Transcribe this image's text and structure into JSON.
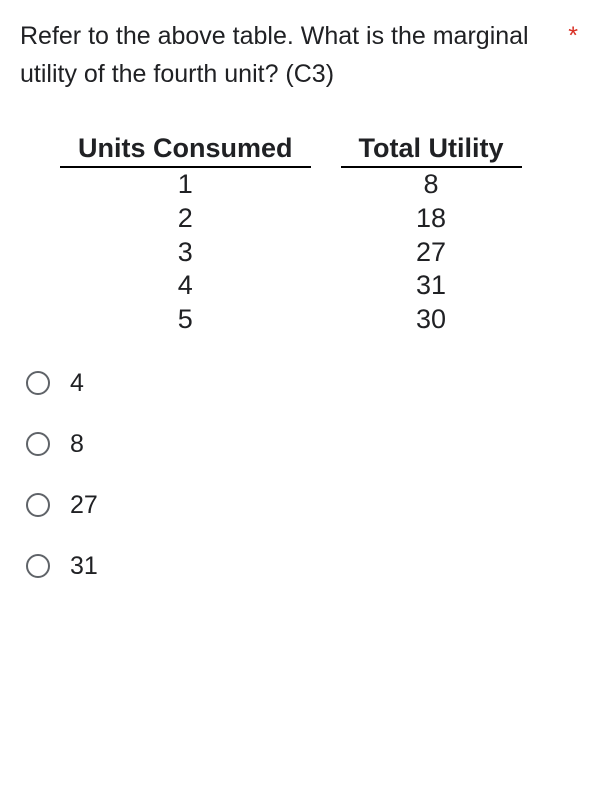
{
  "question": {
    "text": "Refer to the above table. What is the marginal utility of the fourth unit? (C3)",
    "required_marker": "*"
  },
  "table": {
    "type": "table",
    "columns": [
      "Units Consumed",
      "Total Utility"
    ],
    "rows": [
      [
        "1",
        "8"
      ],
      [
        "2",
        "18"
      ],
      [
        "3",
        "27"
      ],
      [
        "4",
        "31"
      ],
      [
        "5",
        "30"
      ]
    ],
    "header_fontsize": 27,
    "cell_fontsize": 27,
    "border_color": "#000000",
    "text_color": "#000000",
    "background_color": "#ffffff"
  },
  "options": [
    {
      "label": "4"
    },
    {
      "label": "8"
    },
    {
      "label": "27"
    },
    {
      "label": "31"
    }
  ],
  "colors": {
    "text": "#202124",
    "required": "#d93025",
    "radio_border": "#5f6368",
    "background": "#ffffff"
  }
}
